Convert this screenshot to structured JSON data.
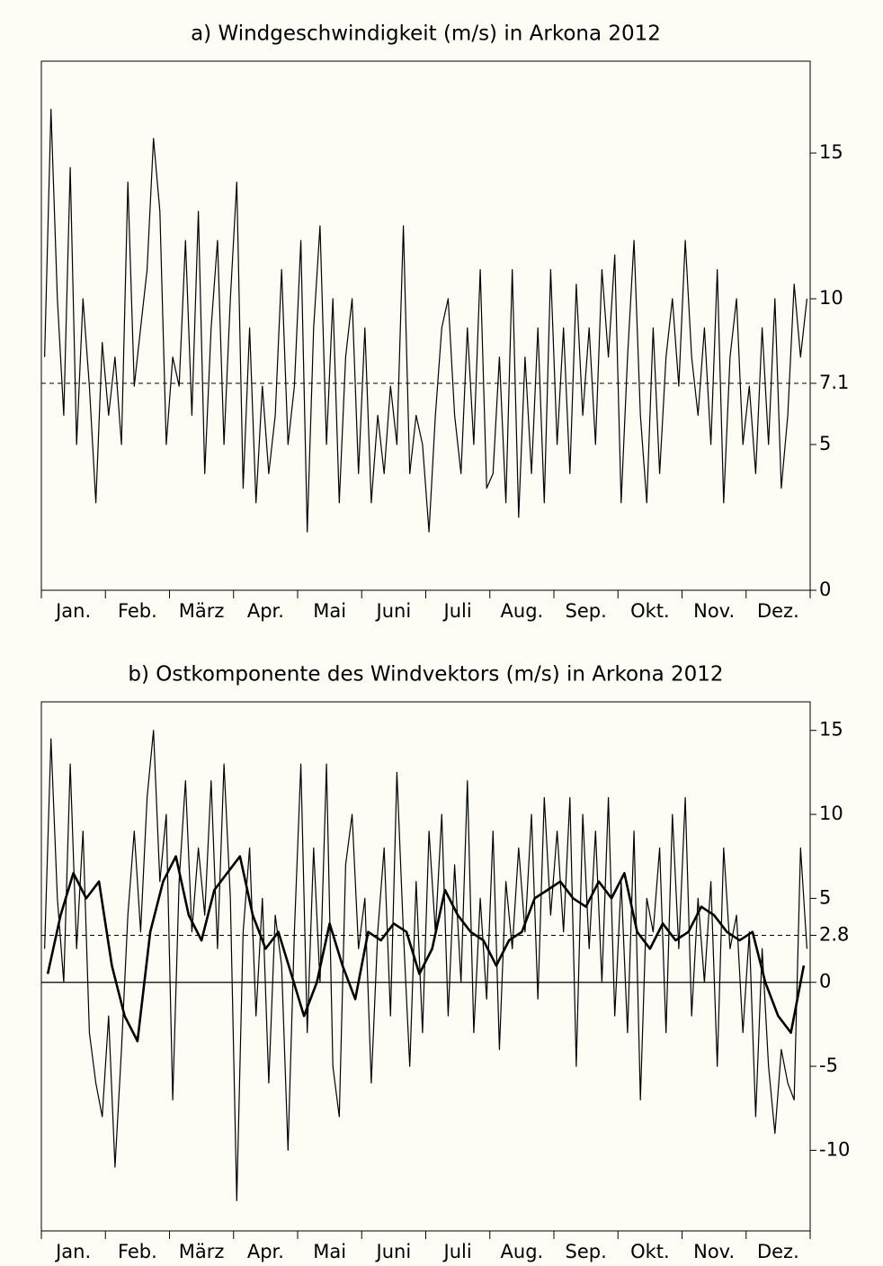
{
  "charts": [
    {
      "type": "line",
      "title": "a) Windgeschwindigkeit (m/s) in Arkona 2012",
      "categories": [
        "Jan.",
        "Feb.",
        "März",
        "Apr.",
        "Mai",
        "Juni",
        "Juli",
        "Aug.",
        "Sep.",
        "Okt.",
        "Nov.",
        "Dez."
      ],
      "ylim": [
        0,
        18.15
      ],
      "yticks": [
        0,
        5,
        10,
        15
      ],
      "mean_line": 7.1,
      "zero_line": false,
      "series": [
        {
          "color": "#000000",
          "values": [
            8,
            16.5,
            10,
            6,
            14.5,
            5,
            10,
            7,
            3,
            8.5,
            6,
            8,
            5,
            14,
            7,
            9,
            11,
            15.5,
            13,
            5,
            8,
            7,
            12,
            6,
            13,
            4,
            9,
            12,
            5,
            10,
            14,
            3.5,
            9,
            3,
            7,
            4,
            6,
            11,
            5,
            7,
            12,
            2,
            9,
            12.5,
            5,
            10,
            3,
            8,
            10,
            4,
            9,
            3,
            6,
            4,
            7,
            5,
            12.5,
            4,
            6,
            5,
            2,
            6,
            9,
            10,
            6,
            4,
            9,
            5,
            11,
            3.5,
            4,
            8,
            3,
            11,
            2.5,
            8,
            4,
            9,
            3,
            11,
            5,
            9,
            4,
            10.5,
            6,
            9,
            5,
            11,
            8,
            11.5,
            3,
            8,
            12,
            6,
            3,
            9,
            4,
            8,
            10,
            7,
            12,
            8,
            6,
            9,
            5,
            11,
            3,
            8,
            10,
            5,
            7,
            4,
            9,
            5,
            10,
            3.5,
            6,
            10.5,
            8,
            10
          ]
        }
      ]
    },
    {
      "type": "line",
      "title": "b) Ostkomponente des Windvektors (m/s) in Arkona 2012",
      "categories": [
        "Jan.",
        "Feb.",
        "März",
        "Apr.",
        "Mai",
        "Juni",
        "Juli",
        "Aug.",
        "Sep.",
        "Okt.",
        "Nov.",
        "Dez."
      ],
      "ylim": [
        -14.8,
        16.7
      ],
      "yticks": [
        -10,
        -5,
        0,
        5,
        10,
        15
      ],
      "mean_line": 2.8,
      "zero_line": true,
      "series": [
        {
          "color": "#000000",
          "values": [
            2,
            14.5,
            5,
            0,
            13,
            2,
            9,
            -3,
            -6,
            -8,
            -2,
            -11,
            -4,
            4,
            9,
            3,
            11,
            15,
            6,
            10,
            -7,
            6,
            12,
            3,
            8,
            4,
            12,
            2,
            13,
            5,
            -13,
            3,
            8,
            -2,
            5,
            -6,
            4,
            1,
            -10,
            3,
            13,
            -3,
            8,
            0,
            13,
            -5,
            -8,
            7,
            10,
            2,
            5,
            -6,
            3,
            8,
            -2,
            12.5,
            3,
            -5,
            6,
            -3,
            9,
            3,
            10,
            -2,
            7,
            0,
            12,
            -3,
            5,
            -1,
            9,
            -4,
            6,
            2,
            8,
            3,
            10,
            -1,
            11,
            4,
            9,
            3,
            11,
            -5,
            10,
            2,
            9,
            0,
            11,
            -2,
            6,
            -3,
            9,
            -7,
            5,
            3,
            8,
            -3,
            10,
            2,
            11,
            -2,
            5,
            0,
            6,
            -5,
            8,
            2,
            4,
            -3,
            3,
            -8,
            2,
            -5,
            -9,
            -4,
            -6,
            -7,
            8,
            2
          ]
        },
        {
          "color": "#000000",
          "values": [
            0.5,
            4,
            6.5,
            5,
            6,
            1,
            -2,
            -3.5,
            3,
            6,
            7.5,
            4,
            2.5,
            5.5,
            6.5,
            7.5,
            4,
            2,
            3,
            0.5,
            -2,
            0,
            3.5,
            1,
            -1,
            3,
            2.5,
            3.5,
            3,
            0.5,
            2,
            5.5,
            4,
            3,
            2.5,
            1,
            2.5,
            3,
            5,
            5.5,
            6,
            5,
            4.5,
            6,
            5,
            6.5,
            3,
            2,
            3.5,
            2.5,
            3,
            4.5,
            4,
            3,
            2.5,
            3,
            0,
            -2,
            -3,
            1
          ]
        }
      ]
    }
  ]
}
